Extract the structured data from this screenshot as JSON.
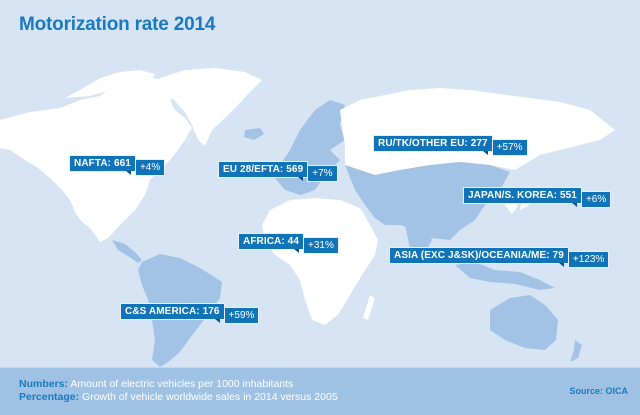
{
  "title": "Motorization rate 2014",
  "colors": {
    "background": "#d6e4f4",
    "land_white": "#ffffff",
    "land_highlight": "#a3c3e6",
    "label_bg": "#1174b8",
    "title": "#1a7ac0",
    "footer": "#9fc2e4"
  },
  "regions": [
    {
      "name": "NAFTA: 661",
      "growth": "+4%"
    },
    {
      "name": "EU 28/EFTA: 569",
      "growth": "+7%"
    },
    {
      "name": "RU/TK/OTHER EU: 277",
      "growth": "+57%"
    },
    {
      "name": "JAPAN/S. KOREA: 551",
      "growth": "+6%"
    },
    {
      "name": "AFRICA: 44",
      "growth": "+31%"
    },
    {
      "name": "ASIA (EXC J&SK)/OCEANIA/ME: 79",
      "growth": "+123%"
    },
    {
      "name": "C&S AMERICA: 176",
      "growth": "+59%"
    }
  ],
  "legend": {
    "numbers_key": "Numbers:",
    "numbers_text": "Amount of electric vehicles per 1000 inhabitants",
    "percentage_key": "Percentage:",
    "percentage_text": "Growth of vehicle worldwide sales in 2014 versus 2005"
  },
  "source": "Source: OICA"
}
